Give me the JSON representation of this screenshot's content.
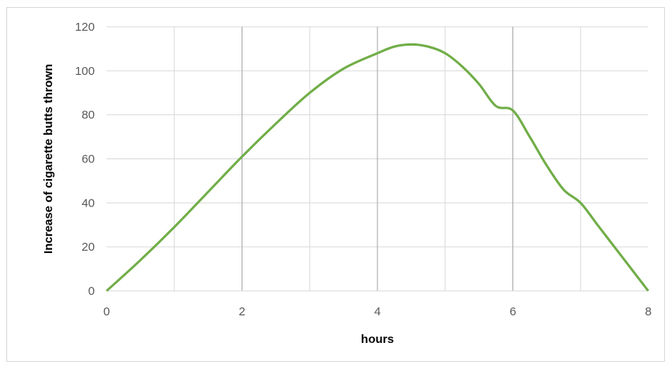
{
  "chart_data": {
    "type": "line",
    "title": "",
    "xlabel": "hours",
    "ylabel": "Increase of cigarette butts thrown",
    "xlim": [
      0,
      8
    ],
    "ylim": [
      0,
      120
    ],
    "x_ticks": [
      "0",
      "2",
      "4",
      "6",
      "8"
    ],
    "y_ticks": [
      "0",
      "20",
      "40",
      "60",
      "80",
      "100",
      "120"
    ],
    "x_gridlines": [
      1,
      2,
      3,
      4,
      5,
      6,
      7
    ],
    "y_gridlines": [
      20,
      40,
      60,
      80,
      100,
      120
    ],
    "grid": true,
    "legend": "none",
    "series": [
      {
        "color": "#70ad47",
        "x": [
          0,
          0.5,
          1,
          1.5,
          2,
          2.5,
          3,
          3.5,
          4,
          4.25,
          4.5,
          4.75,
          5,
          5.25,
          5.5,
          5.75,
          6,
          6.25,
          6.5,
          6.75,
          7,
          7.25,
          7.5,
          7.75,
          8
        ],
        "y": [
          0,
          14,
          29,
          45,
          61,
          76,
          90,
          101,
          108,
          111,
          112,
          111,
          108,
          102,
          94,
          84,
          82,
          70,
          57,
          46,
          40,
          30,
          20,
          10,
          0
        ]
      }
    ]
  },
  "colors": {
    "line": "#70ad47",
    "grid": "#d9d9d9",
    "tick_text": "#595959"
  }
}
